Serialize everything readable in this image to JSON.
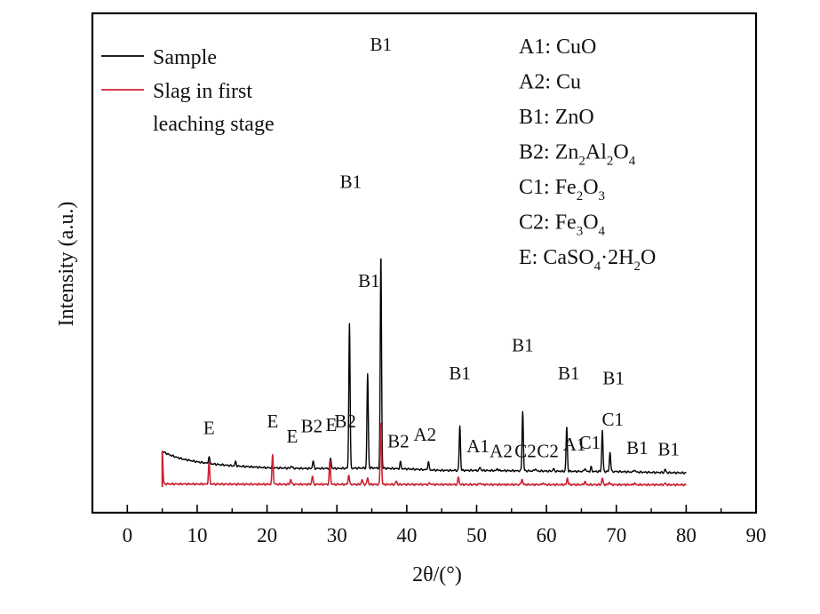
{
  "chart_data": {
    "type": "line",
    "xlabel": "2θ/(°)",
    "ylabel": "Intensity (a.u.)",
    "xlim": [
      -5,
      90
    ],
    "x_ticks": [
      "0",
      "10",
      "20",
      "30",
      "40",
      "50",
      "60",
      "70",
      "80",
      "90"
    ],
    "y_ticks": "none",
    "grid": false,
    "legend_position": "top-left",
    "series": [
      {
        "name": "Sample",
        "color": "#000000",
        "baseline": [
          [
            5,
            0.215
          ],
          [
            6,
            0.195
          ],
          [
            7,
            0.18
          ],
          [
            8,
            0.168
          ],
          [
            10,
            0.152
          ],
          [
            12,
            0.14
          ],
          [
            15,
            0.128
          ],
          [
            20,
            0.116
          ],
          [
            25,
            0.112
          ],
          [
            30,
            0.112
          ],
          [
            35,
            0.115
          ],
          [
            40,
            0.109
          ],
          [
            45,
            0.1
          ],
          [
            50,
            0.1
          ],
          [
            55,
            0.098
          ],
          [
            60,
            0.096
          ],
          [
            65,
            0.094
          ],
          [
            70,
            0.093
          ],
          [
            75,
            0.088
          ],
          [
            80,
            0.085
          ]
        ],
        "peaks": [
          [
            11.7,
            0.04
          ],
          [
            15.5,
            0.025
          ],
          [
            20.8,
            0.02
          ],
          [
            23.5,
            0.015
          ],
          [
            26.6,
            0.045
          ],
          [
            29.1,
            0.06
          ],
          [
            31.8,
            0.88
          ],
          [
            34.4,
            0.57
          ],
          [
            36.3,
            1.3
          ],
          [
            39.1,
            0.04
          ],
          [
            43.1,
            0.05
          ],
          [
            47.6,
            0.27
          ],
          [
            50.5,
            0.02
          ],
          [
            53,
            0.012
          ],
          [
            56.6,
            0.36
          ],
          [
            58.4,
            0.015
          ],
          [
            61,
            0.015
          ],
          [
            62.9,
            0.27
          ],
          [
            65.5,
            0.02
          ],
          [
            66.4,
            0.025
          ],
          [
            68,
            0.25
          ],
          [
            69.1,
            0.12
          ],
          [
            72.6,
            0.015
          ],
          [
            77,
            0.02
          ]
        ]
      },
      {
        "name": "Slag in first leaching stage",
        "color": "#cc2233",
        "baseline": [
          [
            5,
            0.018
          ],
          [
            20,
            0.016
          ],
          [
            40,
            0.015
          ],
          [
            60,
            0.014
          ],
          [
            80,
            0.013
          ]
        ],
        "peaks": [
          [
            5,
            0.2
          ],
          [
            11.7,
            0.13
          ],
          [
            20.8,
            0.18
          ],
          [
            23.4,
            0.03
          ],
          [
            26.5,
            0.05
          ],
          [
            29,
            0.14
          ],
          [
            31.7,
            0.06
          ],
          [
            33.6,
            0.03
          ],
          [
            34.4,
            0.04
          ],
          [
            36.3,
            0.38
          ],
          [
            38.5,
            0.02
          ],
          [
            43.3,
            0.01
          ],
          [
            47.4,
            0.045
          ],
          [
            50.5,
            0.01
          ],
          [
            56.5,
            0.035
          ],
          [
            59.5,
            0.01
          ],
          [
            63,
            0.04
          ],
          [
            65.5,
            0.02
          ],
          [
            68,
            0.04
          ],
          [
            69,
            0.015
          ],
          [
            72.6,
            0.01
          ],
          [
            77,
            0.01
          ]
        ]
      }
    ],
    "peak_labels": [
      {
        "text": "E",
        "x": 11.7,
        "y": 0.32
      },
      {
        "text": "E",
        "x": 20.8,
        "y": 0.36
      },
      {
        "text": "E",
        "x": 23.6,
        "y": 0.27
      },
      {
        "text": "B2",
        "x": 26.4,
        "y": 0.33
      },
      {
        "text": "E",
        "x": 29.2,
        "y": 0.34
      },
      {
        "text": "B2",
        "x": 31.2,
        "y": 0.36
      },
      {
        "text": "B1",
        "x": 32,
        "y": 1.81
      },
      {
        "text": "B1",
        "x": 34.6,
        "y": 1.21
      },
      {
        "text": "B1",
        "x": 36.3,
        "y": 2.64
      },
      {
        "text": "B2",
        "x": 38.8,
        "y": 0.24
      },
      {
        "text": "A2",
        "x": 42.6,
        "y": 0.28
      },
      {
        "text": "B1",
        "x": 47.6,
        "y": 0.65
      },
      {
        "text": "A1",
        "x": 50.2,
        "y": 0.21
      },
      {
        "text": "A2",
        "x": 53.5,
        "y": 0.18
      },
      {
        "text": "B1",
        "x": 56.6,
        "y": 0.82
      },
      {
        "text": "C2",
        "x": 57,
        "y": 0.18
      },
      {
        "text": "C2",
        "x": 60.2,
        "y": 0.18
      },
      {
        "text": "B1",
        "x": 63.2,
        "y": 0.65
      },
      {
        "text": "A1",
        "x": 64,
        "y": 0.22
      },
      {
        "text": "C1",
        "x": 66.2,
        "y": 0.23
      },
      {
        "text": "B1",
        "x": 69.6,
        "y": 0.62
      },
      {
        "text": "C1",
        "x": 69.5,
        "y": 0.37
      },
      {
        "text": "B1",
        "x": 73,
        "y": 0.2
      },
      {
        "text": "B1",
        "x": 77.5,
        "y": 0.19
      }
    ],
    "phase_key": [
      {
        "code": "A1",
        "formula": [
          {
            "t": "CuO"
          }
        ]
      },
      {
        "code": "A2",
        "formula": [
          {
            "t": "Cu"
          }
        ]
      },
      {
        "code": "B1",
        "formula": [
          {
            "t": "ZnO"
          }
        ]
      },
      {
        "code": "B2",
        "formula": [
          {
            "t": "Zn"
          },
          {
            "t": "2",
            "sub": true
          },
          {
            "t": "Al"
          },
          {
            "t": "2",
            "sub": true
          },
          {
            "t": "O"
          },
          {
            "t": "4",
            "sub": true
          }
        ]
      },
      {
        "code": "C1",
        "formula": [
          {
            "t": "Fe"
          },
          {
            "t": "2",
            "sub": true
          },
          {
            "t": "O"
          },
          {
            "t": "3",
            "sub": true
          }
        ]
      },
      {
        "code": "C2",
        "formula": [
          {
            "t": "Fe"
          },
          {
            "t": "3",
            "sub": true
          },
          {
            "t": "O"
          },
          {
            "t": "4",
            "sub": true
          }
        ]
      },
      {
        "code": "E",
        "formula": [
          {
            "t": "CaSO"
          },
          {
            "t": "4",
            "sub": true
          },
          {
            "t": "·2H"
          },
          {
            "t": "2",
            "sub": true
          },
          {
            "t": "O"
          }
        ]
      }
    ],
    "legend": [
      {
        "label": "Sample",
        "color": "#000000"
      },
      {
        "label": "Slag in first leaching stage",
        "lines": [
          "Slag in first",
          "leaching stage"
        ],
        "color": "#cc2233"
      }
    ]
  }
}
